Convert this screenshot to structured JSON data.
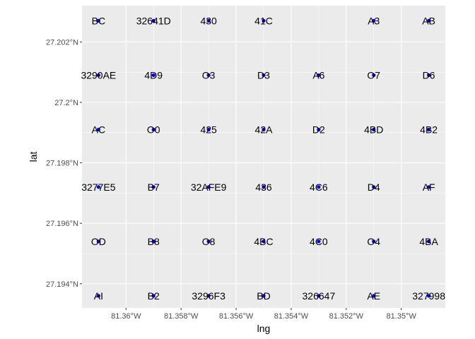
{
  "chart_data": {
    "type": "scatter",
    "title": "",
    "xlabel": "lng",
    "ylabel": "lat",
    "xlim": [
      -81.3616,
      -81.3484
    ],
    "ylim": [
      27.1932,
      27.2032
    ],
    "x_ticks": [
      -81.36,
      -81.358,
      -81.356,
      -81.354,
      -81.352,
      -81.35
    ],
    "x_tick_labels": [
      "81.36°W",
      "81.358°W",
      "81.356°W",
      "81.354°W",
      "81.352°W",
      "81.35°W"
    ],
    "y_ticks": [
      27.194,
      27.196,
      27.198,
      27.2,
      27.202
    ],
    "y_tick_labels": [
      "27.194°N",
      "27.196°N",
      "27.198°N",
      "27.2°N",
      "27.202°N"
    ],
    "grid": true,
    "panel_background": "#ebebeb",
    "grid_color": "#ffffff",
    "point_color": "#0000ff",
    "points": [
      {
        "x": -81.361,
        "y": 27.2027,
        "label": "BC"
      },
      {
        "x": -81.359,
        "y": 27.2027,
        "label": "32641D"
      },
      {
        "x": -81.357,
        "y": 27.2027,
        "label": "430"
      },
      {
        "x": -81.355,
        "y": 27.2027,
        "label": "41C"
      },
      {
        "x": -81.351,
        "y": 27.2027,
        "label": "A3"
      },
      {
        "x": -81.349,
        "y": 27.2027,
        "label": "AB"
      },
      {
        "x": -81.361,
        "y": 27.2009,
        "label": "3290AE"
      },
      {
        "x": -81.359,
        "y": 27.2009,
        "label": "4D9"
      },
      {
        "x": -81.357,
        "y": 27.2009,
        "label": "O3"
      },
      {
        "x": -81.355,
        "y": 27.2009,
        "label": "D3"
      },
      {
        "x": -81.353,
        "y": 27.2009,
        "label": "A6"
      },
      {
        "x": -81.351,
        "y": 27.2009,
        "label": "O7"
      },
      {
        "x": -81.349,
        "y": 27.2009,
        "label": "D6"
      },
      {
        "x": -81.361,
        "y": 27.1991,
        "label": "AC"
      },
      {
        "x": -81.359,
        "y": 27.1991,
        "label": "O0"
      },
      {
        "x": -81.357,
        "y": 27.1991,
        "label": "425"
      },
      {
        "x": -81.355,
        "y": 27.1991,
        "label": "42A"
      },
      {
        "x": -81.353,
        "y": 27.1991,
        "label": "D2"
      },
      {
        "x": -81.351,
        "y": 27.1991,
        "label": "4BD"
      },
      {
        "x": -81.349,
        "y": 27.1991,
        "label": "4B2"
      },
      {
        "x": -81.361,
        "y": 27.1972,
        "label": "3277E5"
      },
      {
        "x": -81.359,
        "y": 27.1972,
        "label": "B7"
      },
      {
        "x": -81.357,
        "y": 27.1972,
        "label": "32AFE9"
      },
      {
        "x": -81.355,
        "y": 27.1972,
        "label": "436"
      },
      {
        "x": -81.353,
        "y": 27.1972,
        "label": "4C6"
      },
      {
        "x": -81.351,
        "y": 27.1972,
        "label": "D4"
      },
      {
        "x": -81.349,
        "y": 27.1972,
        "label": "AF"
      },
      {
        "x": -81.361,
        "y": 27.1954,
        "label": "OD"
      },
      {
        "x": -81.359,
        "y": 27.1954,
        "label": "B8"
      },
      {
        "x": -81.357,
        "y": 27.1954,
        "label": "O8"
      },
      {
        "x": -81.355,
        "y": 27.1954,
        "label": "4BC"
      },
      {
        "x": -81.353,
        "y": 27.1954,
        "label": "4C0"
      },
      {
        "x": -81.351,
        "y": 27.1954,
        "label": "O4"
      },
      {
        "x": -81.349,
        "y": 27.1954,
        "label": "4BA"
      },
      {
        "x": -81.361,
        "y": 27.1936,
        "label": "AI"
      },
      {
        "x": -81.359,
        "y": 27.1936,
        "label": "B2"
      },
      {
        "x": -81.357,
        "y": 27.1936,
        "label": "3296F3"
      },
      {
        "x": -81.355,
        "y": 27.1936,
        "label": "BD"
      },
      {
        "x": -81.353,
        "y": 27.1936,
        "label": "326647"
      },
      {
        "x": -81.351,
        "y": 27.1936,
        "label": "AE"
      },
      {
        "x": -81.349,
        "y": 27.1936,
        "label": "327998"
      }
    ]
  }
}
